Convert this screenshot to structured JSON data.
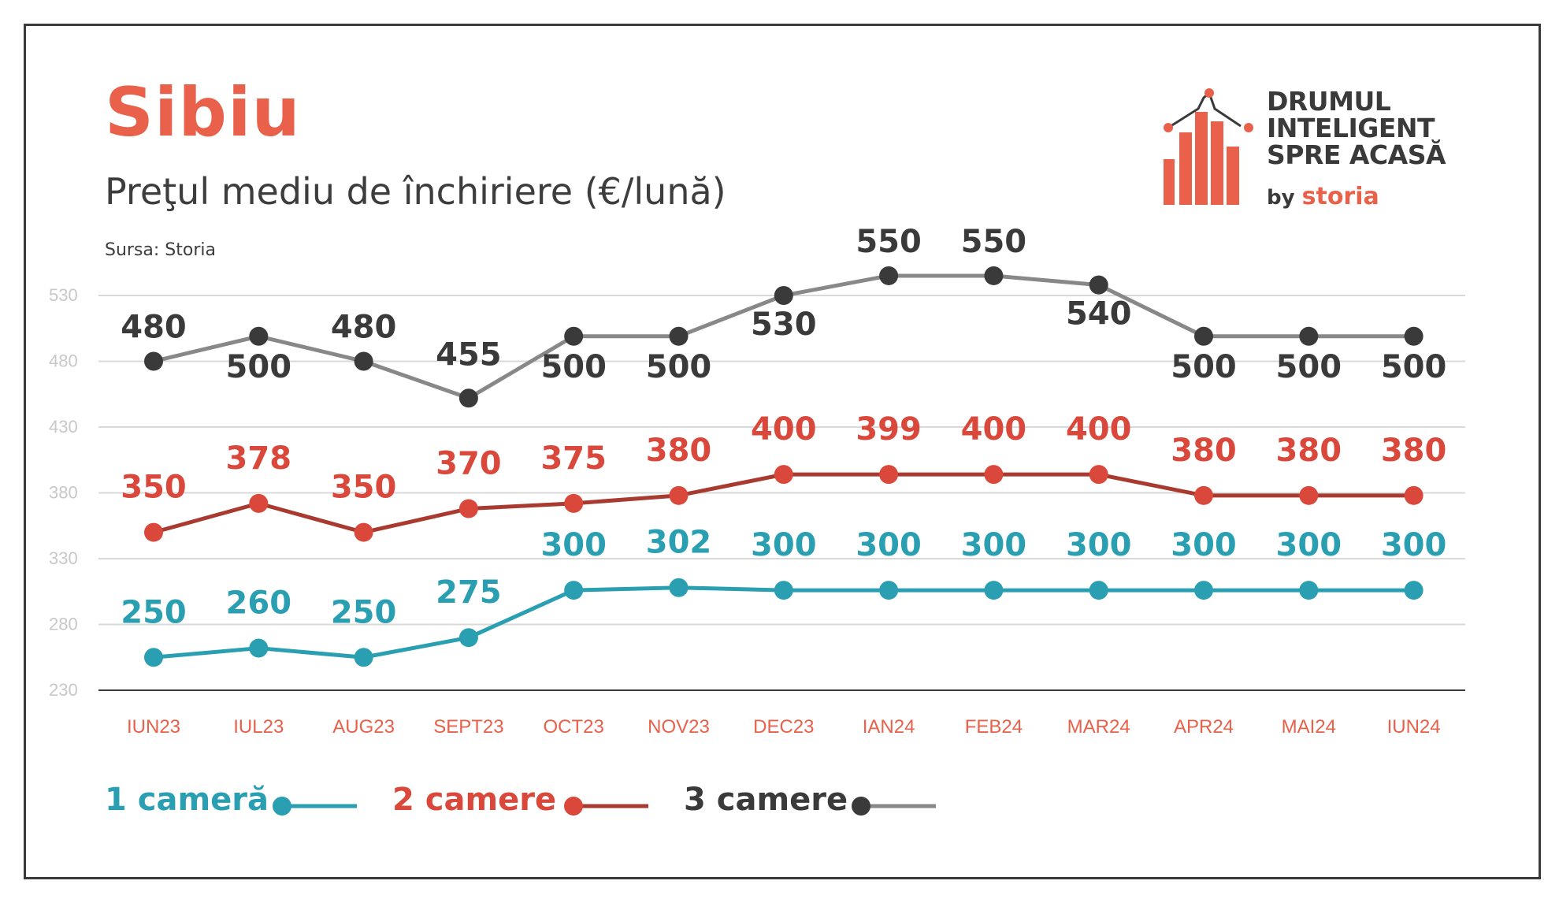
{
  "header": {
    "title": "Sibiu",
    "subtitle": "Preţul mediu de închiriere (€/lună)",
    "source": "Sursa: Storia"
  },
  "logo": {
    "line1": "DRUMUL",
    "line2": "INTELIGENT",
    "line3": "SPRE ACASĂ",
    "by": "by",
    "brand": "storia"
  },
  "colors": {
    "title": "#e9604b",
    "one_room": "#2a9fb2",
    "two_rooms_line": "#a83a30",
    "two_rooms_label": "#d9483b",
    "three_rooms_line": "#888888",
    "three_rooms_point": "#3a3a3a",
    "axis_label": "#e9604b",
    "grid": "#d9d9d9"
  },
  "chart_data": {
    "type": "line",
    "categories": [
      "IUN23",
      "IUL23",
      "AUG23",
      "SEPT23",
      "OCT23",
      "NOV23",
      "DEC23",
      "IAN24",
      "FEB24",
      "MAR24",
      "APR24",
      "MAI24",
      "IUN24"
    ],
    "yticks": [
      230,
      280,
      330,
      380,
      430,
      480,
      530
    ],
    "ylim": [
      230,
      560
    ],
    "grid": true,
    "legend_position": "bottom-left",
    "series": [
      {
        "name": "1 cameră",
        "values": [
          250,
          260,
          250,
          275,
          300,
          302,
          300,
          300,
          300,
          300,
          300,
          300,
          300
        ],
        "plot_values": [
          255,
          262,
          255,
          270,
          306,
          308,
          306,
          306,
          306,
          306,
          306,
          306,
          306
        ]
      },
      {
        "name": "2 camere",
        "values": [
          350,
          378,
          350,
          370,
          375,
          380,
          400,
          399,
          400,
          400,
          380,
          380,
          380
        ],
        "plot_values": [
          350,
          372,
          350,
          368,
          372,
          378,
          394,
          394,
          394,
          394,
          378,
          378,
          378
        ]
      },
      {
        "name": "3 camere",
        "values": [
          480,
          500,
          480,
          455,
          500,
          500,
          530,
          550,
          550,
          540,
          500,
          500,
          500
        ],
        "plot_values": [
          480,
          499,
          480,
          452,
          499,
          499,
          530,
          545,
          545,
          538,
          499,
          499,
          499
        ]
      }
    ]
  }
}
